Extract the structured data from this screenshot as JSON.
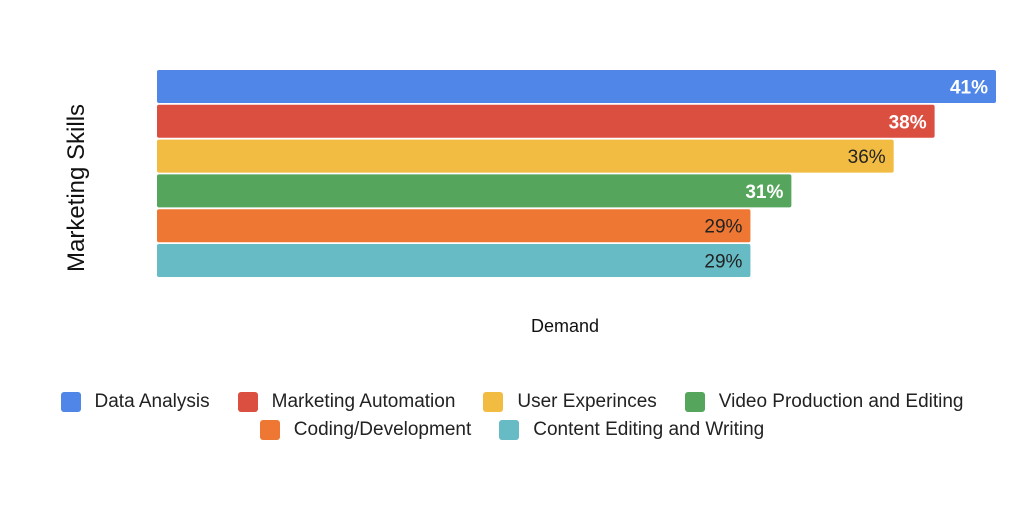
{
  "chart_data": {
    "type": "bar",
    "orientation": "horizontal",
    "title": "",
    "xlabel": "Demand",
    "ylabel": "Marketing Skills",
    "xlim": [
      0,
      41
    ],
    "grid": false,
    "legend_position": "bottom",
    "series": [
      {
        "name": "Data Analysis",
        "value": 41,
        "label": "41%",
        "color": "#4F86E8",
        "label_color": "#ffffff"
      },
      {
        "name": "Marketing Automation",
        "value": 38,
        "label": "38%",
        "color": "#DB4F40",
        "label_color": "#ffffff"
      },
      {
        "name": "User Experinces",
        "value": 36,
        "label": "36%",
        "color": "#F2BC42",
        "label_color": "#222222"
      },
      {
        "name": "Video Production and Editing",
        "value": 31,
        "label": "31%",
        "color": "#56A55C",
        "label_color": "#ffffff"
      },
      {
        "name": "Coding/Development",
        "value": 29,
        "label": "29%",
        "color": "#EE7833",
        "label_color": "#222222"
      },
      {
        "name": "Content Editing and Writing",
        "value": 29,
        "label": "29%",
        "color": "#67BBC5",
        "label_color": "#222222"
      }
    ]
  }
}
